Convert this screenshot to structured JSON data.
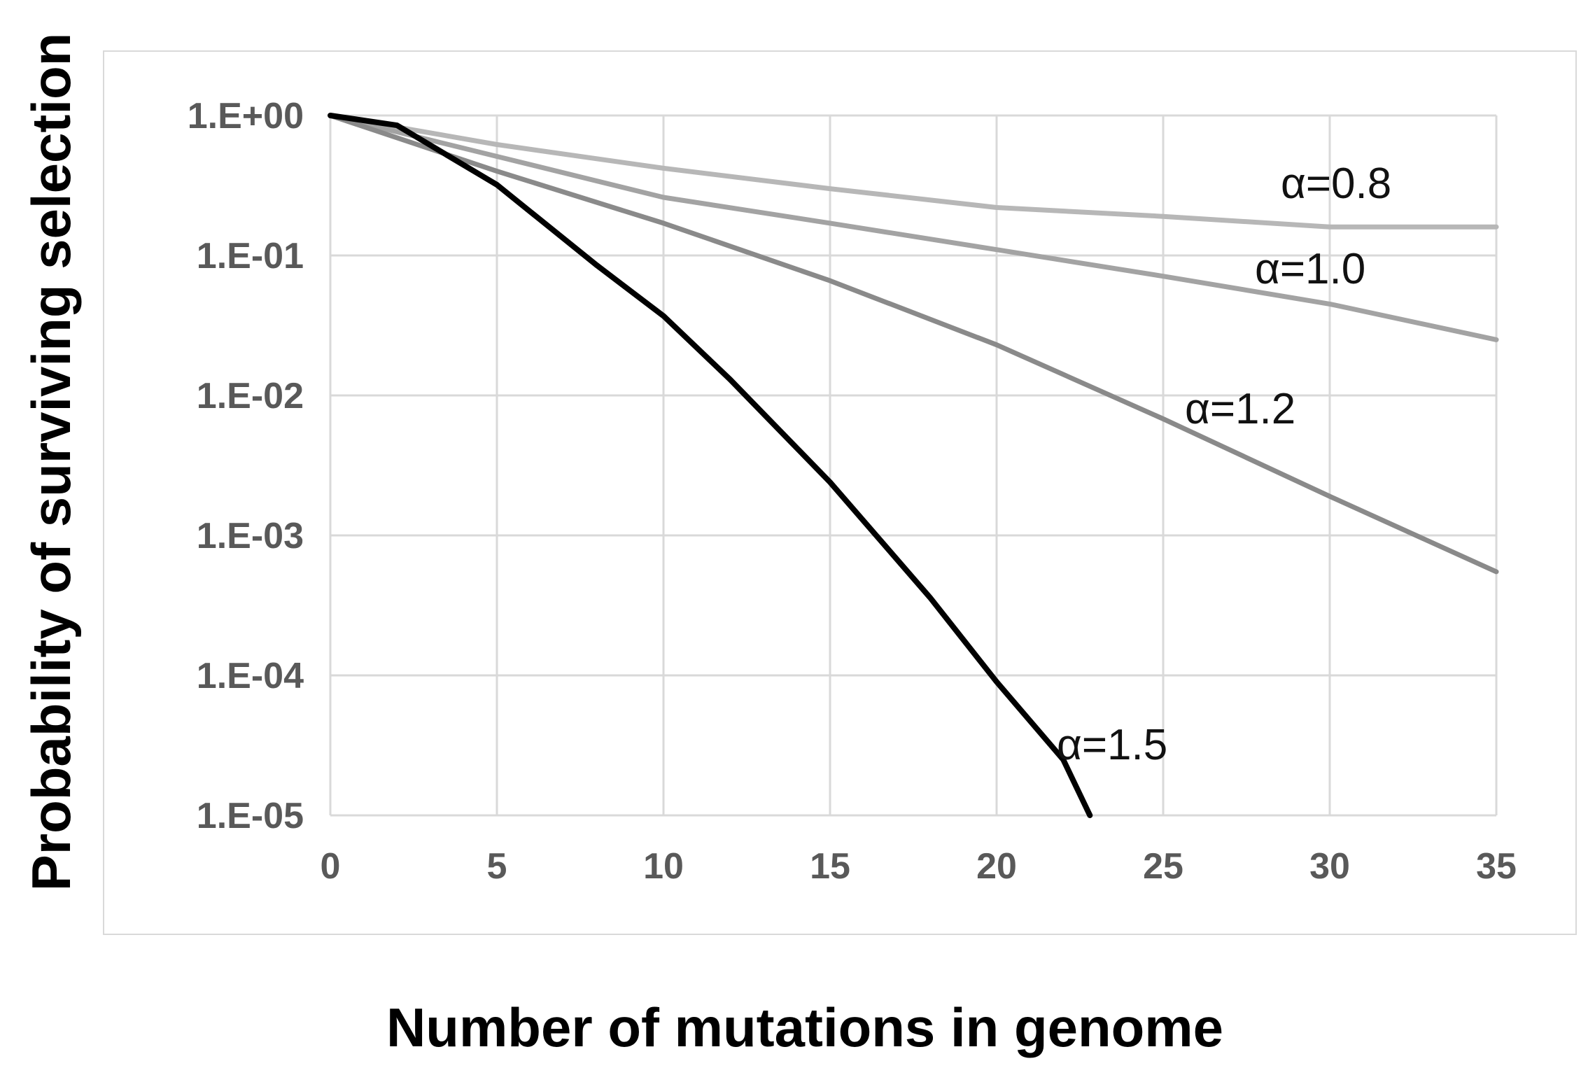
{
  "chart_data": {
    "type": "line",
    "title": "",
    "xlabel": "Number of mutations in genome",
    "ylabel": "Probability of surviving selection",
    "xlim": [
      0,
      35
    ],
    "ylim": [
      1e-05,
      1
    ],
    "yscale": "log",
    "grid": true,
    "legend": "none",
    "x_ticks": [
      "0",
      "5",
      "10",
      "15",
      "20",
      "25",
      "30",
      "35"
    ],
    "y_ticks": [
      "1.E+00",
      "1.E-01",
      "1.E-02",
      "1.E-03",
      "1.E-04",
      "1.E-05"
    ],
    "series": [
      {
        "name": "α=0.8",
        "color": "#b7b7b7",
        "x": [
          0,
          5,
          10,
          15,
          20,
          25,
          30,
          35
        ],
        "y": [
          1.0,
          0.62,
          0.42,
          0.3,
          0.22,
          0.19,
          0.16,
          0.16
        ]
      },
      {
        "name": "α=1.0",
        "color": "#a3a3a3",
        "x": [
          0,
          5,
          10,
          15,
          20,
          25,
          30,
          35
        ],
        "y": [
          1.0,
          0.51,
          0.26,
          0.17,
          0.11,
          0.071,
          0.045,
          0.025
        ]
      },
      {
        "name": "α=1.2",
        "color": "#8a8a8a",
        "x": [
          0,
          5,
          10,
          15,
          20,
          25,
          30,
          35
        ],
        "y": [
          1.0,
          0.4,
          0.17,
          0.066,
          0.023,
          0.0068,
          0.0019,
          0.00055
        ]
      },
      {
        "name": "α=1.5",
        "color": "#000000",
        "x": [
          0,
          2,
          5,
          8,
          10,
          12,
          15,
          18,
          20,
          22,
          22.8
        ],
        "y": [
          1.0,
          0.85,
          0.32,
          0.085,
          0.037,
          0.013,
          0.0024,
          0.00036,
          9e-05,
          2.5e-05,
          1e-05
        ]
      }
    ]
  }
}
